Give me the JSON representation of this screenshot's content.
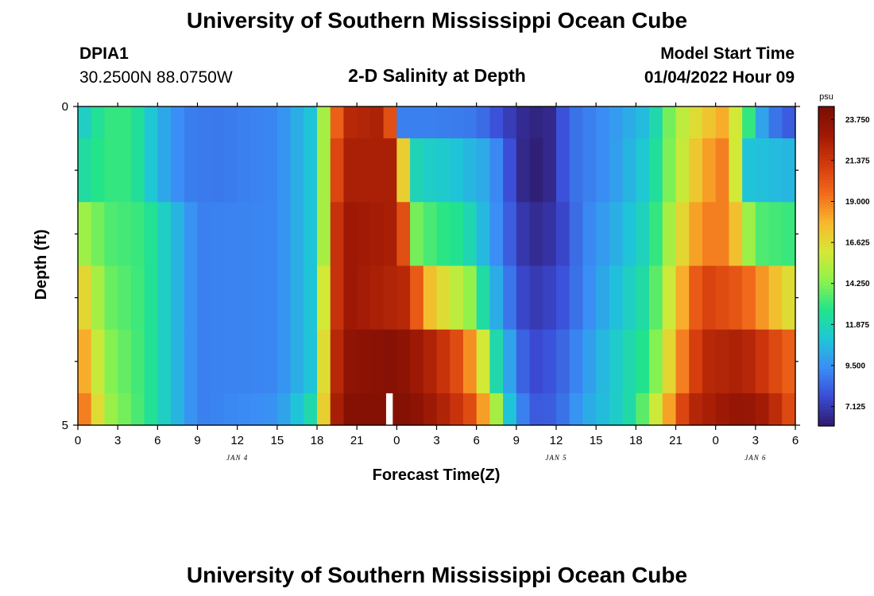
{
  "header": {
    "title": "University of Southern Mississippi Ocean Cube",
    "station": "DPIA1",
    "coords": "30.2500N  88.0750W",
    "subtitle": "2-D Salinity at Depth",
    "model_start_label": "Model Start Time",
    "model_start_value": "01/04/2022 Hour 09"
  },
  "footer": {
    "title": "University of Southern Mississippi Ocean Cube"
  },
  "chart_data": {
    "type": "heatmap",
    "title": "2-D Salinity at Depth",
    "xlabel": "Forecast Time(Z)",
    "ylabel": "Depth (ft)",
    "x_tick_labels": [
      "0",
      "3",
      "6",
      "9",
      "12",
      "15",
      "18",
      "21",
      "0",
      "3",
      "6",
      "9",
      "12",
      "15",
      "18",
      "21",
      "0",
      "3",
      "6"
    ],
    "date_labels": [
      {
        "label": "JAN 4",
        "at_tick": 4
      },
      {
        "label": "JAN 5",
        "at_tick": 12
      },
      {
        "label": "JAN 6",
        "at_tick": 17
      }
    ],
    "y_tick_labels": [
      "0",
      "5"
    ],
    "ylim": [
      0,
      5
    ],
    "colorbar": {
      "unit": "psu",
      "tick_labels": [
        "23.750",
        "21.375",
        "19.000",
        "16.625",
        "14.250",
        "11.875",
        "9.500",
        "7.125"
      ],
      "range": [
        6.0,
        24.5
      ],
      "colors": [
        "#2e1a6b",
        "#3b4bd6",
        "#3a8ef5",
        "#1fc6d8",
        "#22e48a",
        "#8ef24c",
        "#d6e836",
        "#f8b82c",
        "#f26a1b",
        "#d33a0d",
        "#a01a05",
        "#7a0d04"
      ]
    },
    "depth_rows": [
      "0-0.5 ft",
      "0.5-1.5 ft",
      "1.5-2.5 ft",
      "2.5-3.5 ft",
      "3.5-4.5 ft",
      "4.5-5 ft"
    ],
    "row_anchors": [
      [
        [
          0,
          11
        ],
        [
          2,
          13
        ],
        [
          4,
          13
        ],
        [
          6,
          10.5
        ],
        [
          8,
          9
        ],
        [
          10,
          8.8
        ],
        [
          15,
          9.2
        ],
        [
          17.5,
          11
        ],
        [
          18.5,
          15
        ],
        [
          19.3,
          19
        ],
        [
          20,
          22
        ],
        [
          23,
          22.5
        ],
        [
          23.6,
          20
        ],
        [
          24,
          14
        ],
        [
          24.3,
          9
        ],
        [
          27,
          9
        ],
        [
          30,
          8.8
        ],
        [
          32,
          7.5
        ],
        [
          34,
          6.3
        ],
        [
          35.5,
          6.5
        ],
        [
          37,
          8.5
        ],
        [
          40,
          9.5
        ],
        [
          43,
          11
        ],
        [
          45,
          15
        ],
        [
          47,
          17
        ],
        [
          48.5,
          18
        ],
        [
          49,
          17
        ],
        [
          50,
          15
        ],
        [
          51,
          11
        ],
        [
          52,
          9
        ],
        [
          54,
          7.8
        ]
      ],
      [
        [
          0,
          12
        ],
        [
          2,
          13
        ],
        [
          4,
          13
        ],
        [
          6,
          10.5
        ],
        [
          8,
          9
        ],
        [
          10,
          8.8
        ],
        [
          15,
          9.2
        ],
        [
          17.5,
          11
        ],
        [
          18.5,
          15
        ],
        [
          19.3,
          20
        ],
        [
          20,
          22.5
        ],
        [
          23.5,
          22.5
        ],
        [
          24.3,
          19
        ],
        [
          25,
          12
        ],
        [
          26,
          11.5
        ],
        [
          28,
          11.2
        ],
        [
          31,
          10
        ],
        [
          33,
          7
        ],
        [
          34,
          6
        ],
        [
          35.5,
          6.5
        ],
        [
          37,
          8.5
        ],
        [
          40,
          9.5
        ],
        [
          43,
          11.5
        ],
        [
          45,
          15
        ],
        [
          47,
          18
        ],
        [
          48.5,
          19
        ],
        [
          49.5,
          16
        ],
        [
          50.5,
          11
        ],
        [
          54,
          10.5
        ]
      ],
      [
        [
          0,
          15
        ],
        [
          1,
          14.5
        ],
        [
          2,
          13.5
        ],
        [
          5,
          13
        ],
        [
          7,
          11
        ],
        [
          9,
          9
        ],
        [
          15,
          9.2
        ],
        [
          17.5,
          11
        ],
        [
          18.5,
          15
        ],
        [
          19.3,
          21
        ],
        [
          20,
          23
        ],
        [
          24,
          22.5
        ],
        [
          24.6,
          20
        ],
        [
          25.5,
          14
        ],
        [
          27,
          13
        ],
        [
          29,
          12.5
        ],
        [
          31,
          10
        ],
        [
          33,
          7.5
        ],
        [
          34,
          6.5
        ],
        [
          36,
          7
        ],
        [
          38,
          9
        ],
        [
          40,
          10
        ],
        [
          43,
          12
        ],
        [
          45,
          16
        ],
        [
          47,
          19
        ],
        [
          49,
          19
        ],
        [
          50,
          16
        ],
        [
          51,
          13.5
        ],
        [
          54,
          13
        ]
      ],
      [
        [
          0,
          17.5
        ],
        [
          1,
          16
        ],
        [
          2,
          14
        ],
        [
          5,
          13
        ],
        [
          7,
          11
        ],
        [
          9,
          9
        ],
        [
          15,
          9.2
        ],
        [
          17.5,
          11
        ],
        [
          18.5,
          16
        ],
        [
          19.3,
          21
        ],
        [
          20,
          23
        ],
        [
          25,
          22
        ],
        [
          26,
          18
        ],
        [
          28,
          16
        ],
        [
          29.5,
          14.5
        ],
        [
          31,
          11
        ],
        [
          33,
          8
        ],
        [
          34,
          7
        ],
        [
          36,
          7.5
        ],
        [
          38,
          9
        ],
        [
          40,
          10.5
        ],
        [
          43,
          12.5
        ],
        [
          45,
          17
        ],
        [
          47,
          21
        ],
        [
          50,
          20
        ],
        [
          52,
          18
        ],
        [
          54,
          16
        ]
      ],
      [
        [
          0,
          19
        ],
        [
          1,
          17
        ],
        [
          2,
          14.5
        ],
        [
          5,
          13
        ],
        [
          7,
          11
        ],
        [
          9,
          9
        ],
        [
          15,
          9.2
        ],
        [
          17.5,
          11
        ],
        [
          18.5,
          16.5
        ],
        [
          19.3,
          21.5
        ],
        [
          20,
          23.5
        ],
        [
          24,
          24
        ],
        [
          27,
          22
        ],
        [
          29,
          20
        ],
        [
          30.5,
          16
        ],
        [
          31.5,
          12
        ],
        [
          33,
          9
        ],
        [
          34,
          7.5
        ],
        [
          36,
          8
        ],
        [
          38,
          9.5
        ],
        [
          40,
          11
        ],
        [
          43,
          13
        ],
        [
          45,
          18
        ],
        [
          47,
          22
        ],
        [
          50,
          22.5
        ],
        [
          52,
          21
        ],
        [
          54,
          19.5
        ]
      ],
      [
        [
          0,
          20
        ],
        [
          1,
          18
        ],
        [
          2,
          15
        ],
        [
          5,
          13
        ],
        [
          7,
          11
        ],
        [
          9,
          9
        ],
        [
          15,
          9.5
        ],
        [
          17.5,
          12
        ],
        [
          18.5,
          17
        ],
        [
          19.3,
          22
        ],
        [
          20,
          24
        ],
        [
          25,
          24
        ],
        [
          28,
          22
        ],
        [
          30,
          20
        ],
        [
          31.5,
          15
        ],
        [
          32.5,
          11
        ],
        [
          34,
          8
        ],
        [
          36,
          8.2
        ],
        [
          38,
          10
        ],
        [
          40,
          11
        ],
        [
          42,
          12.5
        ],
        [
          44,
          17
        ],
        [
          46,
          22
        ],
        [
          50,
          23.5
        ],
        [
          52,
          22.5
        ],
        [
          54,
          20
        ]
      ]
    ],
    "missing_gap": {
      "row": 5,
      "x_from": 23.2,
      "x_to": 23.7
    }
  }
}
